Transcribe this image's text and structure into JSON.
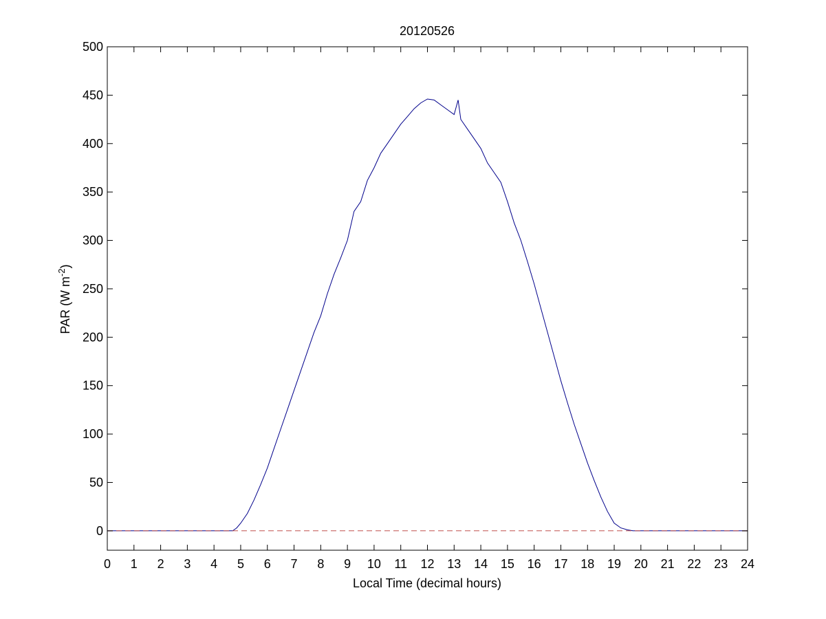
{
  "chart_data": {
    "type": "line",
    "title": "20120526",
    "xlabel": "Local Time (decimal hours)",
    "ylabel": {
      "base": "PAR (W m",
      "sup": "-2",
      "end": ")"
    },
    "xlim": [
      0,
      24
    ],
    "ylim": [
      -20,
      500
    ],
    "xticks": [
      0,
      1,
      2,
      3,
      4,
      5,
      6,
      7,
      8,
      9,
      10,
      11,
      12,
      13,
      14,
      15,
      16,
      17,
      18,
      19,
      20,
      21,
      22,
      23,
      24
    ],
    "yticks": [
      0,
      50,
      100,
      150,
      200,
      250,
      300,
      350,
      400,
      450,
      500
    ],
    "grid": false,
    "colors": {
      "par_line": "#00008b",
      "zero_line": "#c0504d"
    },
    "series": [
      {
        "style": "solid",
        "x": [
          0,
          4.7,
          4.85,
          5.0,
          5.25,
          5.5,
          5.75,
          6.0,
          6.25,
          6.5,
          6.75,
          7.0,
          7.25,
          7.5,
          7.75,
          8.0,
          8.25,
          8.5,
          8.75,
          9.0,
          9.25,
          9.5,
          9.75,
          10.0,
          10.25,
          10.5,
          10.75,
          11.0,
          11.25,
          11.5,
          11.75,
          12.0,
          12.25,
          12.5,
          12.75,
          13.0,
          13.15,
          13.25,
          13.5,
          13.75,
          14.0,
          14.25,
          14.5,
          14.75,
          15.0,
          15.25,
          15.5,
          15.75,
          16.0,
          16.25,
          16.5,
          16.75,
          17.0,
          17.25,
          17.5,
          17.75,
          18.0,
          18.25,
          18.5,
          18.75,
          19.0,
          19.25,
          19.5,
          19.7,
          20.0,
          24
        ],
        "y": [
          0,
          0,
          3,
          8,
          18,
          32,
          48,
          65,
          85,
          105,
          125,
          145,
          165,
          185,
          205,
          222,
          245,
          265,
          282,
          300,
          330,
          340,
          362,
          375,
          390,
          400,
          410,
          420,
          428,
          436,
          442,
          446,
          445,
          440,
          435,
          430,
          445,
          425,
          415,
          405,
          395,
          380,
          370,
          360,
          340,
          318,
          300,
          278,
          255,
          230,
          205,
          180,
          155,
          132,
          110,
          90,
          70,
          52,
          35,
          20,
          8,
          3,
          1,
          0,
          0,
          0
        ]
      },
      {
        "style": "dashed",
        "x": [
          0,
          24
        ],
        "y": [
          0,
          0
        ]
      }
    ]
  }
}
